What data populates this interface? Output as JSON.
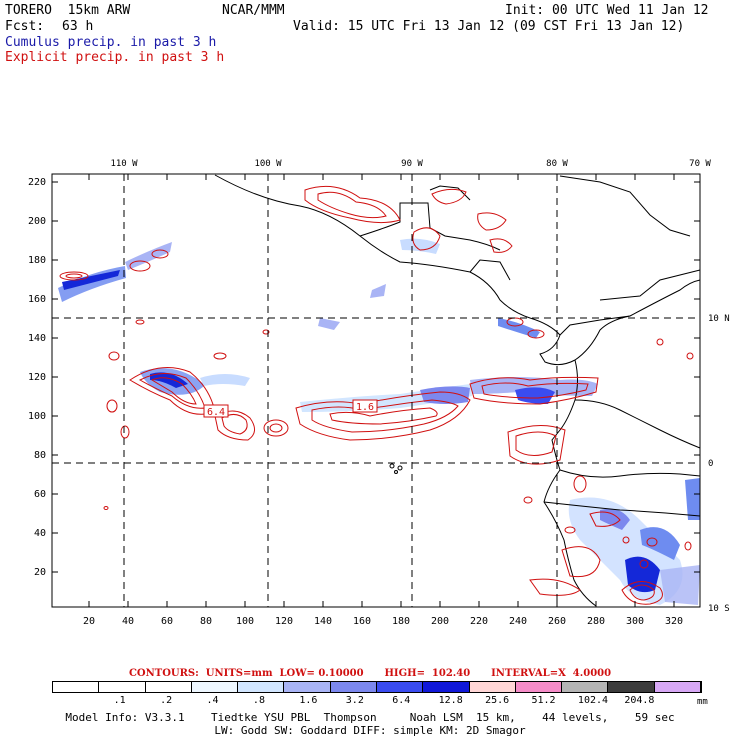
{
  "header": {
    "model": "TORERO  15km ARW",
    "org": "NCAR/MMM",
    "init": "Init: 00 UTC Wed 11 Jan 12",
    "fcst_label": "Fcst:",
    "fcst_value": "63 h",
    "valid": "Valid: 15 UTC Fri 13 Jan 12 (09 CST Fri 13 Jan 12)",
    "line_blue": "Cumulus precip. in past 3 h",
    "line_red": "Explicit precip. in past 3 h"
  },
  "map": {
    "top_lon_labels": [
      "110 W",
      "100 W",
      "90 W",
      "80 W",
      "70 W"
    ],
    "right_lat_labels": [
      "10 N",
      "0",
      "10 S"
    ],
    "y_ticks": [
      "20",
      "40",
      "60",
      "80",
      "100",
      "120",
      "140",
      "160",
      "180",
      "200",
      "220"
    ],
    "x_ticks": [
      "20",
      "40",
      "60",
      "80",
      "100",
      "120",
      "140",
      "160",
      "180",
      "200",
      "220",
      "240",
      "260",
      "280",
      "300",
      "320"
    ],
    "contour_labels": [
      "6.4",
      "1.6"
    ],
    "colors": {
      "contour": "#d01010",
      "coast": "#000000",
      "precip_light": "#c8dcff",
      "precip_mid": "#6e8cf0",
      "precip_dark": "#1428d8"
    }
  },
  "contours_line": "CONTOURS:  UNITS=mm  LOW= 0.10000      HIGH=  102.40      INTERVAL=X  4.0000",
  "colorbar": {
    "labels": [
      ".1",
      ".2",
      ".4",
      ".8",
      "1.6",
      "3.2",
      "6.4",
      "12.8",
      "25.6",
      "51.2",
      "102.4",
      "204.8"
    ],
    "unit": "mm",
    "colors": [
      "#ffffff",
      "#ffffff",
      "#ffffff",
      "#eef7ff",
      "#d2e6ff",
      "#a9b4f5",
      "#7c88ee",
      "#3a4cf0",
      "#1018d8",
      "#ffd6d6",
      "#f58cc8",
      "#b4b4b4",
      "#3c3c3c",
      "#d7a8f5"
    ]
  },
  "footer": {
    "line1": "Model Info: V3.3.1    Tiedtke YSU PBL  Thompson     Noah LSM  15 km,    44 levels,    59 sec",
    "line2": "LW: Godd SW: Goddard DIFF: simple KM: 2D Smagor"
  }
}
